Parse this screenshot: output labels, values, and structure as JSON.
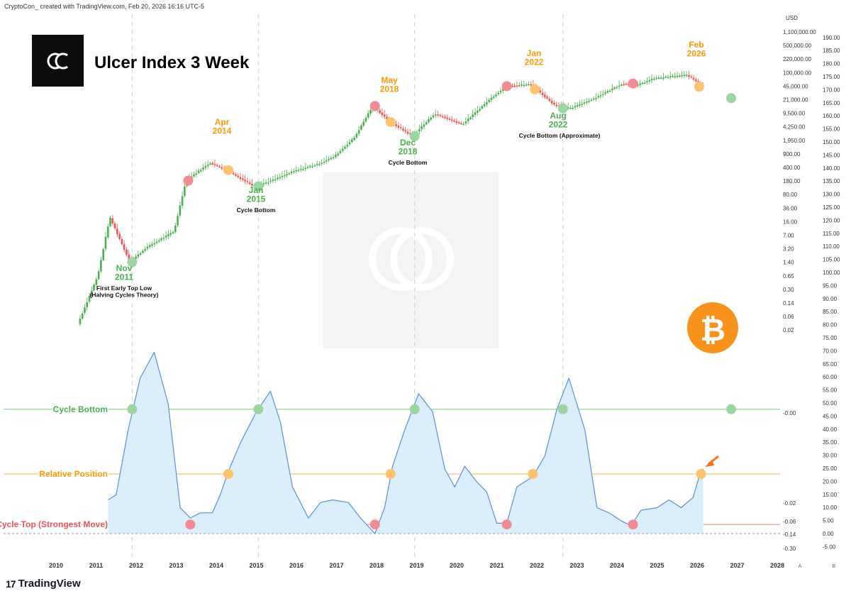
{
  "header": {
    "credit": "CryptoCon_ created with TradingView.com, Feb 20, 2026 16:16 UTC-5",
    "brand": "TradingView",
    "brand_glyph": "17"
  },
  "chart_data": {
    "type": "line",
    "title": "Ulcer Index 3 Week",
    "currency_label": "USD",
    "x_axis": {
      "ticks": [
        "2010",
        "2011",
        "2012",
        "2013",
        "2014",
        "2015",
        "2016",
        "2017",
        "2018",
        "2019",
        "2020",
        "2021",
        "2022",
        "2023",
        "2024",
        "2025",
        "2026",
        "2027",
        "2028"
      ]
    },
    "price_axis": {
      "scale": "log",
      "ticks": [
        "1,100,000.00",
        "500,000.00",
        "220,000.00",
        "100,000.00",
        "45,000.00",
        "21,000.00",
        "9,500.00",
        "4,250.00",
        "1,950.00",
        "900.00",
        "400.00",
        "180.00",
        "80.00",
        "36.00",
        "16.00",
        "7.00",
        "3.20",
        "1.40",
        "0.65",
        "0.30",
        "0.14",
        "0.06",
        "0.02"
      ],
      "indicator_ticks": [
        "-0.00",
        "-0.02",
        "-0.06",
        "-0.14",
        "-0.30"
      ]
    },
    "right_axis": {
      "ticks": [
        190,
        185,
        180,
        175,
        170,
        165,
        160,
        155,
        150,
        145,
        140,
        135,
        130,
        125,
        120,
        115,
        110,
        105,
        100,
        95,
        90,
        85,
        80,
        75,
        70,
        65,
        60,
        55,
        50,
        45,
        40,
        35,
        30,
        25,
        20,
        15,
        10,
        5,
        0,
        -5
      ]
    },
    "scale_labels": [
      "A",
      "B"
    ],
    "btc_price": {
      "name": "BTC/USD",
      "x": [
        2010.6,
        2011.1,
        2011.4,
        2011.9,
        2012.3,
        2013.0,
        2013.3,
        2013.9,
        2014.3,
        2015.0,
        2015.4,
        2016.0,
        2016.6,
        2017.0,
        2017.5,
        2017.96,
        2018.4,
        2018.95,
        2019.5,
        2020.2,
        2020.9,
        2021.3,
        2021.9,
        2022.5,
        2022.9,
        2023.5,
        2024.2,
        2024.5,
        2025.0,
        2025.8,
        2026.15
      ],
      "y": [
        0.06,
        1.0,
        30,
        2.2,
        5,
        13,
        250,
        700,
        460,
        180,
        240,
        430,
        650,
        1000,
        3000,
        19000,
        7500,
        3300,
        12000,
        6500,
        29000,
        60000,
        67000,
        20000,
        16500,
        30000,
        70000,
        60000,
        95000,
        115000,
        67000
      ]
    },
    "ulcer_index": {
      "name": "Ulcer Index 3 Week",
      "x": [
        2011.3,
        2011.5,
        2011.8,
        2012.1,
        2012.45,
        2012.8,
        2013.1,
        2013.35,
        2013.6,
        2013.9,
        2014.1,
        2014.3,
        2014.6,
        2015.0,
        2015.35,
        2015.6,
        2015.9,
        2016.3,
        2016.6,
        2016.9,
        2017.3,
        2017.6,
        2017.96,
        2018.2,
        2018.4,
        2018.7,
        2019.05,
        2019.4,
        2019.7,
        2019.95,
        2020.2,
        2020.5,
        2020.75,
        2021.0,
        2021.25,
        2021.5,
        2021.9,
        2022.2,
        2022.5,
        2022.8,
        2023.2,
        2023.5,
        2023.8,
        2024.1,
        2024.35,
        2024.6,
        2025.0,
        2025.3,
        2025.6,
        2025.9,
        2026.05,
        2026.15
      ],
      "y": [
        13,
        15,
        40,
        60,
        70,
        50,
        10,
        6,
        8,
        8,
        15,
        24,
        35,
        47,
        55,
        43,
        18,
        6,
        12,
        13,
        12,
        6,
        0,
        10,
        26,
        40,
        54,
        47,
        25,
        18,
        26,
        20,
        16,
        4,
        4,
        18,
        22,
        30,
        48,
        60,
        40,
        10,
        8,
        5,
        3,
        9,
        10,
        13,
        10,
        14,
        22,
        25
      ]
    },
    "levels": [
      {
        "name": "Cycle Bottom",
        "value": 48,
        "color": "#4caf50"
      },
      {
        "name": "Relative Position",
        "value": 23,
        "color": "#ff9800"
      },
      {
        "name": "Cycle Top (Strongest Move)",
        "value": 3.5,
        "color": "#ef5350"
      }
    ],
    "vertical_markers": [
      2011.9,
      2015.05,
      2018.95,
      2022.65
    ],
    "annotations": [
      {
        "kind": "bottom",
        "date": "Nov\n2011",
        "note": "First Early Top Low\n(Halving Cycles Theory)",
        "color": "#4caf50"
      },
      {
        "kind": "top",
        "date": "Apr\n2014",
        "note": "",
        "color": "#ff9800"
      },
      {
        "kind": "bottom",
        "date": "Jan\n2015",
        "note": "Cycle Bottom",
        "color": "#4caf50"
      },
      {
        "kind": "top",
        "date": "May\n2018",
        "note": "",
        "color": "#ff9800"
      },
      {
        "kind": "bottom",
        "date": "Dec\n2018",
        "note": "Cycle Bottom",
        "color": "#4caf50"
      },
      {
        "kind": "top",
        "date": "Jan\n2022",
        "note": "",
        "color": "#ff9800"
      },
      {
        "kind": "bottom",
        "date": "Aug\n2022",
        "note": "Cycle Bottom (Approximate)",
        "color": "#4caf50"
      },
      {
        "kind": "top",
        "date": "Feb\n2026",
        "note": "",
        "color": "#ff9800"
      }
    ],
    "colors": {
      "up": "#26a69a",
      "up_green": "#4caf50",
      "down": "#ef5350",
      "line": "#5b8fd8",
      "fill": "#dbeefb",
      "btc": "#f7931a",
      "grid_v": "#b7dfc3"
    }
  }
}
